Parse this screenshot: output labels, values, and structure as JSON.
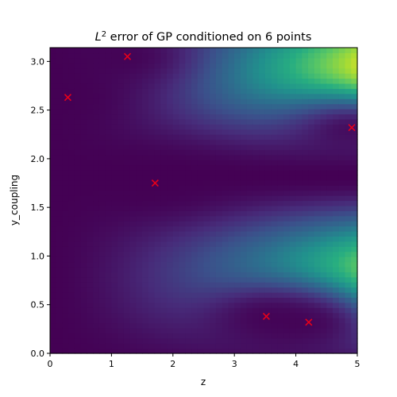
{
  "chart_data": {
    "type": "heatmap",
    "title_prefix": "L",
    "title_superscript": "2",
    "title_suffix": " error of GP conditioned on 6 points",
    "xlabel": "z",
    "ylabel": "y_coupling",
    "xlim": [
      0,
      5
    ],
    "ylim": [
      0,
      3.14159
    ],
    "colormap": "viridis",
    "x_ticks": [
      {
        "value": 0,
        "label": "0"
      },
      {
        "value": 1,
        "label": "1"
      },
      {
        "value": 2,
        "label": "2"
      },
      {
        "value": 3,
        "label": "3"
      },
      {
        "value": 4,
        "label": "4"
      },
      {
        "value": 5,
        "label": "5"
      }
    ],
    "y_ticks": [
      {
        "value": 0.0,
        "label": "0.0"
      },
      {
        "value": 0.5,
        "label": "0.5"
      },
      {
        "value": 1.0,
        "label": "1.0"
      },
      {
        "value": 1.5,
        "label": "1.5"
      },
      {
        "value": 2.0,
        "label": "2.0"
      },
      {
        "value": 2.5,
        "label": "2.5"
      },
      {
        "value": 3.0,
        "label": "3.0"
      }
    ],
    "conditioning_points": [
      {
        "x": 0.29,
        "y": 2.63
      },
      {
        "x": 1.26,
        "y": 3.05
      },
      {
        "x": 1.71,
        "y": 1.75
      },
      {
        "x": 3.52,
        "y": 0.38
      },
      {
        "x": 4.21,
        "y": 0.32
      },
      {
        "x": 4.91,
        "y": 2.32
      }
    ],
    "marker_color": "#e8001a",
    "grid": false,
    "legend": "none"
  }
}
